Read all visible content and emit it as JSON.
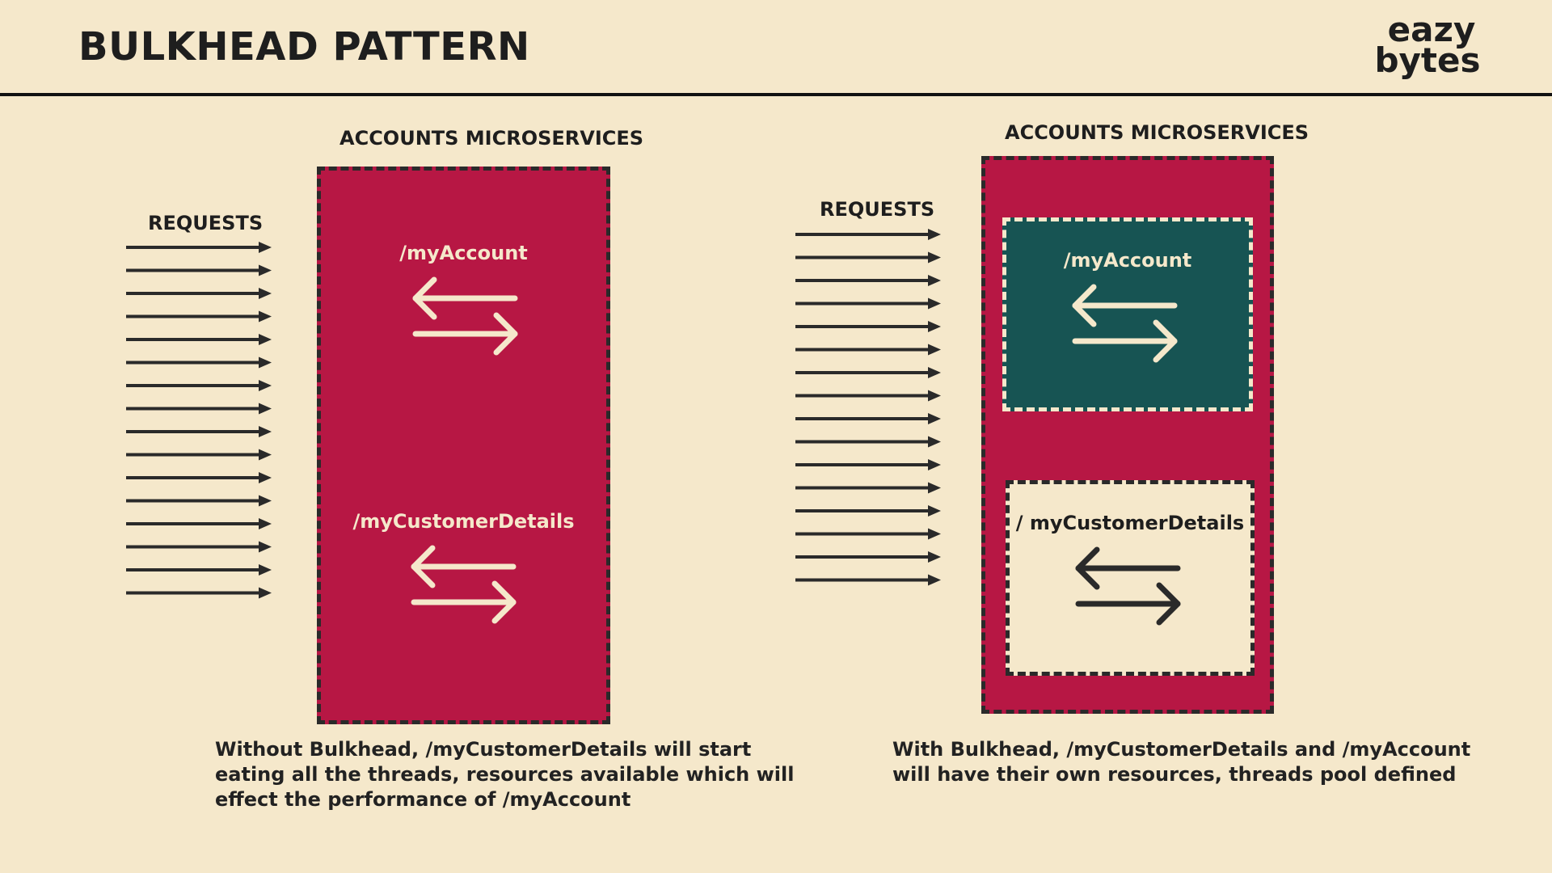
{
  "header": {
    "title": "BULKHEAD PATTERN",
    "logo_line1": "eazy",
    "logo_line2": "bytes"
  },
  "left_diagram": {
    "requests_label": "REQUESTS",
    "service_label": "ACCOUNTS MICROSERVICES",
    "endpoint_top": "/myAccount",
    "endpoint_bottom": "/myCustomerDetails",
    "request_arrow_count": 16,
    "caption": "Without Bulkhead, /myCustomerDetails will start eating all the threads, resources available which will effect the performance of /myAccount"
  },
  "right_diagram": {
    "requests_label": "REQUESTS",
    "service_label": "ACCOUNTS MICROSERVICES",
    "endpoint_top": "/myAccount",
    "endpoint_bottom": "/ myCustomerDetails",
    "request_arrow_count": 16,
    "caption": "With Bulkhead, /myCustomerDetails and /myAccount will have their own resources, threads pool defined"
  },
  "colors": {
    "background": "#f5e8cb",
    "crimson": "#b71744",
    "teal": "#175453",
    "dark": "#2a2a2a"
  }
}
